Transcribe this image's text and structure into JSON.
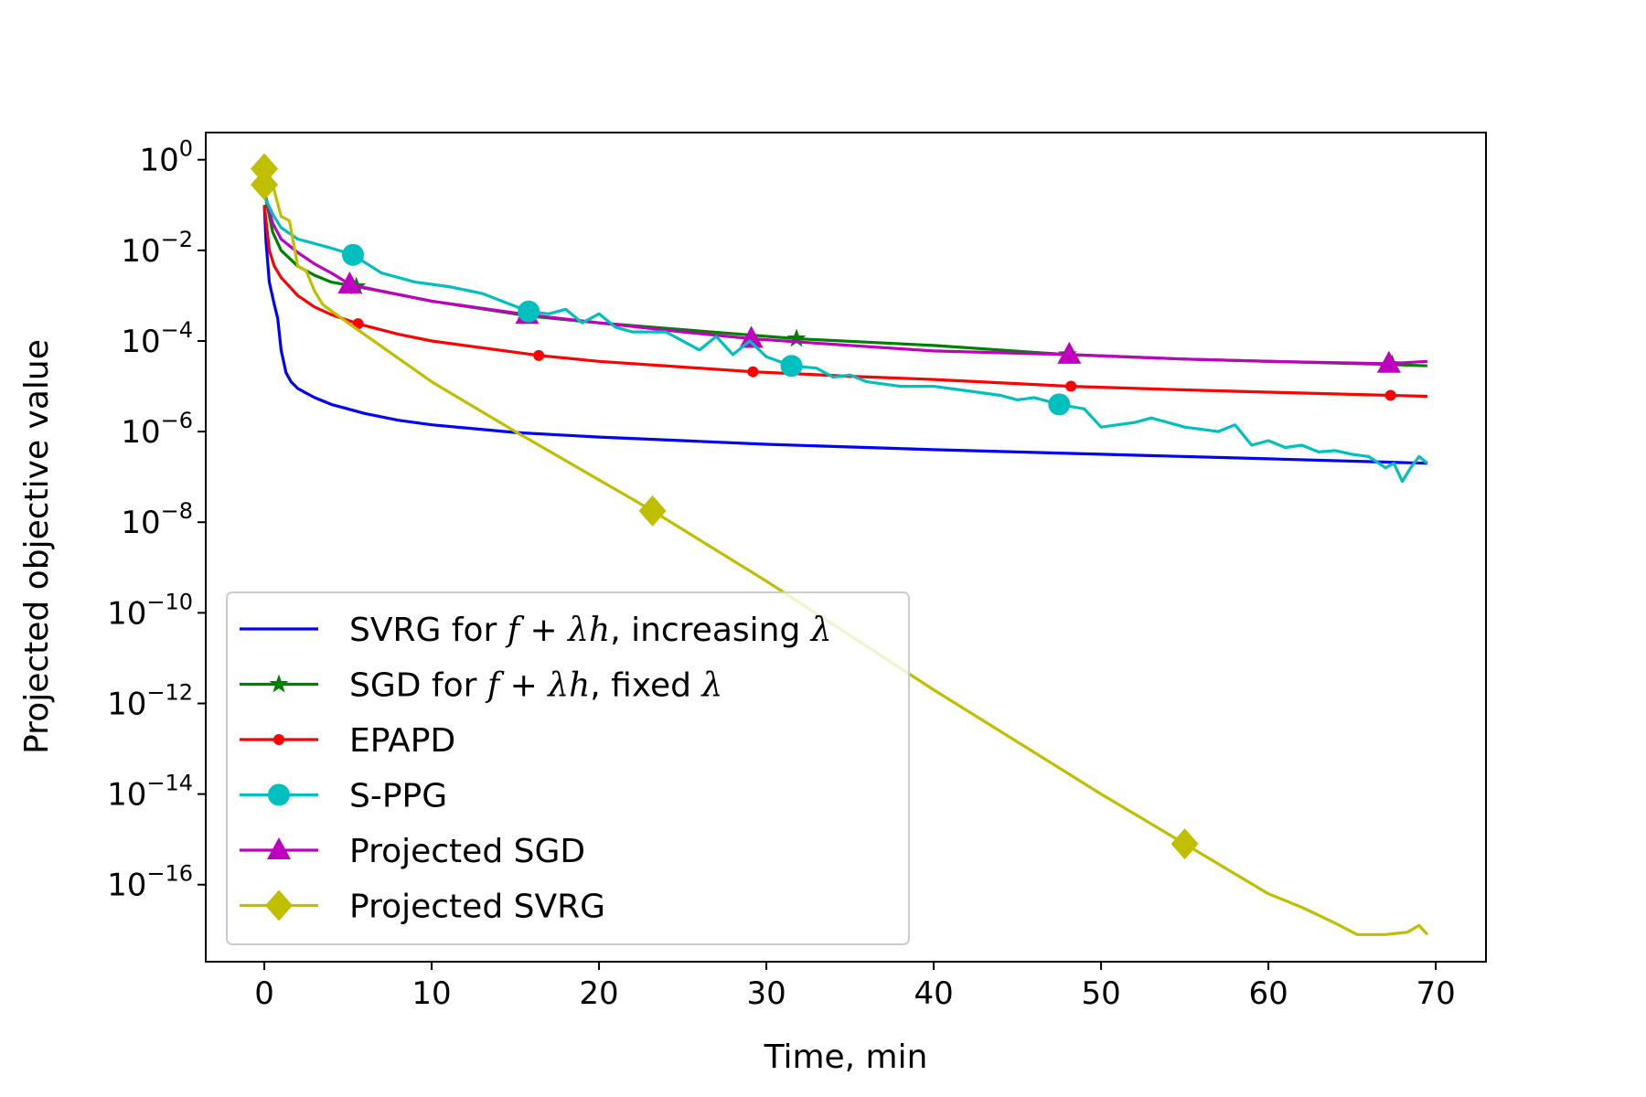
{
  "chart_data": {
    "type": "line",
    "title": "",
    "xlabel": "Time, min",
    "ylabel": "Projected objective value",
    "xlim": [
      -3.5,
      73
    ],
    "ylim_log10": [
      -17.7,
      0.6
    ],
    "xticks": [
      0,
      10,
      20,
      30,
      40,
      50,
      60,
      70
    ],
    "yticks": [
      {
        "exp": 0,
        "base": "10",
        "sup": "0"
      },
      {
        "exp": -2,
        "base": "10",
        "sup": "−2"
      },
      {
        "exp": -4,
        "base": "10",
        "sup": "−4"
      },
      {
        "exp": -6,
        "base": "10",
        "sup": "−6"
      },
      {
        "exp": -8,
        "base": "10",
        "sup": "−8"
      },
      {
        "exp": -10,
        "base": "10",
        "sup": "−10"
      },
      {
        "exp": -12,
        "base": "10",
        "sup": "−12"
      },
      {
        "exp": -14,
        "base": "10",
        "sup": "−14"
      },
      {
        "exp": -16,
        "base": "10",
        "sup": "−16"
      }
    ],
    "grid": false,
    "legend_position": "lower-left",
    "series": [
      {
        "name": "SVRG for f + λh, increasing λ",
        "legend": {
          "pre": "SVRG for ",
          "f": "f",
          "op": " + ",
          "lam": "λ",
          "h": "h",
          "post": ", increasing ",
          "lam2": "λ"
        },
        "color": "#0000ff",
        "marker": "none",
        "x": [
          0,
          0.1,
          0.3,
          0.6,
          0.8,
          1.0,
          1.3,
          1.6,
          2.0,
          2.5,
          3,
          4,
          5,
          6,
          8,
          10,
          15,
          20,
          25,
          30,
          40,
          50,
          60,
          69.5
        ],
        "log10y": [
          -1.0,
          -1.8,
          -2.7,
          -3.2,
          -3.5,
          -4.2,
          -4.7,
          -4.9,
          -5.05,
          -5.15,
          -5.25,
          -5.4,
          -5.5,
          -5.6,
          -5.75,
          -5.85,
          -6.02,
          -6.12,
          -6.2,
          -6.28,
          -6.4,
          -6.5,
          -6.6,
          -6.7
        ],
        "marker_x": []
      },
      {
        "name": "SGD for f + λh, fixed λ",
        "legend": {
          "pre": "SGD for ",
          "f": "f",
          "op": " + ",
          "lam": "λ",
          "h": "h",
          "post": ", fixed ",
          "lam2": "λ"
        },
        "color": "#008000",
        "marker": "star",
        "x": [
          0,
          0.5,
          1,
          2,
          3,
          4,
          5.5,
          7,
          10,
          15.8,
          20,
          25,
          31.8,
          40,
          48,
          55,
          67.4,
          69.5
        ],
        "log10y": [
          -0.7,
          -1.6,
          -2.0,
          -2.35,
          -2.55,
          -2.7,
          -2.8,
          -2.9,
          -3.12,
          -3.45,
          -3.6,
          -3.75,
          -3.95,
          -4.1,
          -4.3,
          -4.4,
          -4.52,
          -4.55
        ],
        "marker_x": [
          5.5,
          15.8,
          31.8,
          48,
          67.4
        ]
      },
      {
        "name": "EPAPD",
        "legend": {
          "text": "EPAPD"
        },
        "color": "#ff0000",
        "marker": "dot",
        "x": [
          0,
          0.3,
          0.6,
          1,
          2,
          3,
          4,
          5.6,
          8,
          10,
          16.4,
          20,
          29.2,
          35,
          40,
          48.2,
          55,
          60,
          67.3,
          69.5
        ],
        "log10y": [
          -1.0,
          -2.0,
          -2.35,
          -2.6,
          -3.0,
          -3.25,
          -3.42,
          -3.62,
          -3.85,
          -4.0,
          -4.32,
          -4.45,
          -4.68,
          -4.78,
          -4.85,
          -5.0,
          -5.08,
          -5.13,
          -5.2,
          -5.22
        ],
        "marker_x": [
          5.6,
          16.4,
          29.2,
          48.2,
          67.3
        ]
      },
      {
        "name": "S-PPG",
        "legend": {
          "text": "S-PPG"
        },
        "color": "#00bfbf",
        "marker": "circle",
        "x": [
          0,
          0.5,
          1,
          2,
          3,
          4,
          5.3,
          7,
          9,
          10,
          11,
          13,
          15.8,
          17,
          18,
          19,
          20,
          21,
          22,
          24,
          26,
          27,
          28,
          29,
          30,
          31.5,
          33,
          34,
          35,
          36,
          38,
          40,
          42,
          44,
          45,
          46,
          47.5,
          49,
          50,
          51,
          52,
          53,
          55,
          57,
          58,
          59,
          60,
          61,
          62,
          63,
          64,
          65,
          66,
          67,
          67.5,
          68,
          68.5,
          69,
          69.5
        ],
        "log10y": [
          -0.8,
          -1.2,
          -1.5,
          -1.75,
          -1.85,
          -1.95,
          -2.1,
          -2.5,
          -2.7,
          -2.75,
          -2.8,
          -2.95,
          -3.35,
          -3.4,
          -3.3,
          -3.6,
          -3.4,
          -3.7,
          -3.8,
          -3.8,
          -4.2,
          -3.9,
          -4.3,
          -4.0,
          -4.35,
          -4.55,
          -4.6,
          -4.8,
          -4.75,
          -4.9,
          -5.0,
          -5.0,
          -5.1,
          -5.2,
          -5.3,
          -5.25,
          -5.4,
          -5.5,
          -5.9,
          -5.85,
          -5.8,
          -5.7,
          -5.9,
          -6.0,
          -5.85,
          -6.3,
          -6.2,
          -6.35,
          -6.3,
          -6.45,
          -6.42,
          -6.5,
          -6.55,
          -6.8,
          -6.7,
          -7.1,
          -6.8,
          -6.55,
          -6.7
        ],
        "marker_x": [
          5.3,
          15.8,
          31.5,
          47.5
        ]
      },
      {
        "name": "Projected SGD",
        "legend": {
          "text": "Projected SGD"
        },
        "color": "#bf00bf",
        "marker": "triangle",
        "x": [
          0,
          0.5,
          1,
          2,
          3,
          4,
          5.1,
          7,
          10,
          15.7,
          20,
          25,
          29.1,
          35,
          40,
          48.1,
          55,
          60,
          67.2,
          69.5
        ],
        "log10y": [
          -0.7,
          -1.4,
          -1.75,
          -2.05,
          -2.3,
          -2.5,
          -2.75,
          -2.9,
          -3.12,
          -3.42,
          -3.6,
          -3.8,
          -3.95,
          -4.1,
          -4.22,
          -4.3,
          -4.4,
          -4.45,
          -4.5,
          -4.45
        ],
        "marker_x": [
          5.1,
          15.7,
          29.1,
          48.1,
          67.2
        ]
      },
      {
        "name": "Projected SVRG",
        "legend": {
          "text": "Projected SVRG"
        },
        "color": "#bfbf00",
        "marker": "diamond",
        "x": [
          0,
          0.5,
          1,
          1.5,
          2,
          2.5,
          3,
          3.5,
          5,
          10,
          15,
          23.2,
          30,
          40,
          50,
          55,
          60,
          62,
          64,
          65.3,
          67,
          68.3,
          69,
          69.5
        ],
        "log10y": [
          -0.25,
          -0.55,
          -1.25,
          -1.35,
          -2.35,
          -2.45,
          -2.9,
          -3.2,
          -3.6,
          -4.9,
          -6.0,
          -7.75,
          -9.3,
          -11.7,
          -14.0,
          -15.1,
          -16.2,
          -16.5,
          -16.85,
          -17.1,
          -17.1,
          -17.05,
          -16.9,
          -17.1
        ],
        "marker_x": [
          0,
          0,
          23.2,
          55
        ],
        "marker_log10y": [
          -0.2,
          -0.55,
          -7.75,
          -15.1
        ]
      }
    ]
  }
}
